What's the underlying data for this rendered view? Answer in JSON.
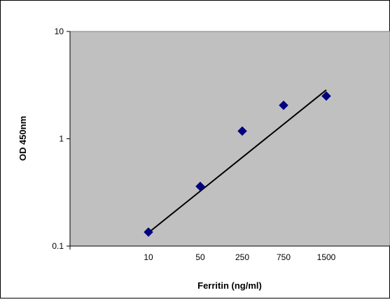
{
  "chart_data": {
    "type": "scatter",
    "xlabel": "Ferritin (ng/ml)",
    "ylabel": "OD 450nm",
    "y_scale": "log",
    "ylim": [
      0.1,
      10
    ],
    "y_ticks": [
      {
        "value": 10,
        "label": "10"
      },
      {
        "value": 1,
        "label": "1"
      },
      {
        "value": 0.1,
        "label": "0.1"
      }
    ],
    "x_tick_labels": [
      "10",
      "50",
      "250",
      "750",
      "1500"
    ],
    "points": [
      {
        "x_label": "10",
        "y": 0.135
      },
      {
        "x_label": "50",
        "y": 0.36
      },
      {
        "x_label": "250",
        "y": 1.18
      },
      {
        "x_label": "750",
        "y": 2.05
      },
      {
        "x_label": "1500",
        "y": 2.5
      }
    ],
    "trendline": {
      "type": "linear_fit",
      "y_start": 0.13,
      "y_end": 2.85
    },
    "grid": false,
    "legend": "none",
    "colors": {
      "plot_background": "#c0c0c0",
      "marker": "#000080",
      "trendline": "#000000",
      "axis": "#000000",
      "frame": "#000000"
    }
  }
}
